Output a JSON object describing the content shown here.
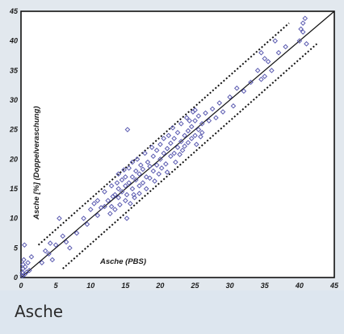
{
  "caption": "Asche",
  "chart_data": {
    "type": "scatter",
    "title": "",
    "xlabel": "Asche (PBS)",
    "ylabel": "Asche [%] (Doppelveraschung)",
    "xlim": [
      0,
      45
    ],
    "ylim": [
      0,
      45
    ],
    "x_ticks": [
      "0",
      "5",
      "10",
      "15",
      "20",
      "25",
      "30",
      "35",
      "40",
      "45"
    ],
    "y_ticks": [
      "0",
      "5",
      "10",
      "15",
      "20",
      "25",
      "30",
      "35",
      "40",
      "45"
    ],
    "grid": false,
    "legend": "none",
    "marker_color": "#5a5ab0",
    "reference_lines": [
      {
        "style": "solid",
        "x": [
          0,
          45
        ],
        "y": [
          0,
          45
        ]
      },
      {
        "style": "dotted",
        "x": [
          2.5,
          38.5
        ],
        "y": [
          5.5,
          43
        ]
      },
      {
        "style": "dotted",
        "x": [
          6,
          42.5
        ],
        "y": [
          1.5,
          39.5
        ]
      }
    ],
    "points": [
      [
        0.2,
        0.3
      ],
      [
        0.2,
        0.8
      ],
      [
        0.3,
        1.5
      ],
      [
        0.3,
        2.2
      ],
      [
        0.4,
        3
      ],
      [
        0.5,
        0.5
      ],
      [
        0.5,
        5.5
      ],
      [
        0.6,
        1.8
      ],
      [
        0.8,
        0.9
      ],
      [
        1,
        2.5
      ],
      [
        1.2,
        1.2
      ],
      [
        1.5,
        3.5
      ],
      [
        3,
        2.5
      ],
      [
        3.5,
        4.5
      ],
      [
        4,
        4
      ],
      [
        4.2,
        5.8
      ],
      [
        4.5,
        3
      ],
      [
        5,
        5.5
      ],
      [
        5.5,
        10
      ],
      [
        6,
        7
      ],
      [
        6.5,
        6
      ],
      [
        7,
        5
      ],
      [
        8,
        7.5
      ],
      [
        9,
        10
      ],
      [
        9.5,
        9
      ],
      [
        10,
        11.5
      ],
      [
        10.5,
        12.5
      ],
      [
        11,
        10.5
      ],
      [
        11,
        13
      ],
      [
        11.5,
        11.8
      ],
      [
        12,
        12
      ],
      [
        12,
        14.5
      ],
      [
        12.5,
        13
      ],
      [
        12.8,
        10.8
      ],
      [
        13,
        12
      ],
      [
        13,
        15.5
      ],
      [
        13.2,
        13.7
      ],
      [
        13.5,
        14
      ],
      [
        13.5,
        11.5
      ],
      [
        13.8,
        16
      ],
      [
        14,
        13.5
      ],
      [
        14,
        15
      ],
      [
        14,
        17.5
      ],
      [
        14.2,
        12.3
      ],
      [
        14.5,
        14.5
      ],
      [
        14.5,
        16.5
      ],
      [
        14.8,
        18.2
      ],
      [
        15,
        13
      ],
      [
        15,
        15.5
      ],
      [
        15,
        17
      ],
      [
        15.2,
        10
      ],
      [
        15.2,
        14
      ],
      [
        15.3,
        25
      ],
      [
        15.5,
        16
      ],
      [
        15.5,
        18.5
      ],
      [
        15.7,
        12.5
      ],
      [
        16,
        15
      ],
      [
        16,
        17
      ],
      [
        16,
        19.5
      ],
      [
        16.2,
        14
      ],
      [
        16.3,
        13.5
      ],
      [
        16.5,
        16.5
      ],
      [
        16.5,
        18
      ],
      [
        16.7,
        20
      ],
      [
        17,
        15.5
      ],
      [
        17,
        17.5
      ],
      [
        17,
        14.2
      ],
      [
        17.2,
        19
      ],
      [
        17.5,
        16
      ],
      [
        17.5,
        18.3
      ],
      [
        17.8,
        21
      ],
      [
        18,
        17
      ],
      [
        18,
        15
      ],
      [
        18.2,
        19.5
      ],
      [
        18.5,
        16.8
      ],
      [
        18.5,
        18.8
      ],
      [
        18.8,
        22
      ],
      [
        19,
        18
      ],
      [
        19,
        20.5
      ],
      [
        19.2,
        16.3
      ],
      [
        19.5,
        19
      ],
      [
        19.5,
        21.5
      ],
      [
        19.8,
        17.5
      ],
      [
        20,
        20
      ],
      [
        20,
        22.5
      ],
      [
        20.2,
        18.5
      ],
      [
        20.5,
        21
      ],
      [
        20.5,
        23.5
      ],
      [
        20.8,
        19.2
      ],
      [
        21,
        21.8
      ],
      [
        21,
        17.8
      ],
      [
        21.2,
        24
      ],
      [
        21.5,
        20.5
      ],
      [
        21.5,
        22.7
      ],
      [
        21.8,
        25.3
      ],
      [
        22,
        21
      ],
      [
        22,
        23.5
      ],
      [
        22.2,
        19.5
      ],
      [
        22.5,
        22
      ],
      [
        22.5,
        24.5
      ],
      [
        22.8,
        20.8
      ],
      [
        23,
        23
      ],
      [
        23,
        26
      ],
      [
        23.2,
        21.5
      ],
      [
        23.5,
        24
      ],
      [
        23.5,
        22.2
      ],
      [
        23.8,
        27
      ],
      [
        24,
        24.8
      ],
      [
        24,
        22.8
      ],
      [
        24.2,
        26.5
      ],
      [
        24.5,
        25.5
      ],
      [
        24.5,
        23.5
      ],
      [
        24.7,
        28
      ],
      [
        25,
        24
      ],
      [
        25,
        26.5
      ],
      [
        25,
        28.3
      ],
      [
        25.2,
        22.5
      ],
      [
        25.5,
        25
      ],
      [
        25.5,
        27.3
      ],
      [
        25.8,
        23.8
      ],
      [
        26,
        26
      ],
      [
        26,
        24.5
      ],
      [
        26.5,
        27.8
      ],
      [
        27,
        26.5
      ],
      [
        27.5,
        28.5
      ],
      [
        28,
        27
      ],
      [
        28.5,
        29.5
      ],
      [
        29,
        28
      ],
      [
        30,
        30.5
      ],
      [
        30.5,
        29
      ],
      [
        31,
        32
      ],
      [
        32,
        31.5
      ],
      [
        33,
        33
      ],
      [
        34,
        35
      ],
      [
        34.5,
        33.5
      ],
      [
        34.5,
        38
      ],
      [
        35,
        37
      ],
      [
        35,
        34
      ],
      [
        35.5,
        36.5
      ],
      [
        36,
        35
      ],
      [
        36.5,
        40
      ],
      [
        37,
        38
      ],
      [
        38,
        39
      ],
      [
        40,
        40
      ],
      [
        40.2,
        42
      ],
      [
        40.5,
        41.5
      ],
      [
        40.5,
        43
      ],
      [
        40.8,
        43.8
      ],
      [
        41,
        39.5
      ]
    ]
  }
}
